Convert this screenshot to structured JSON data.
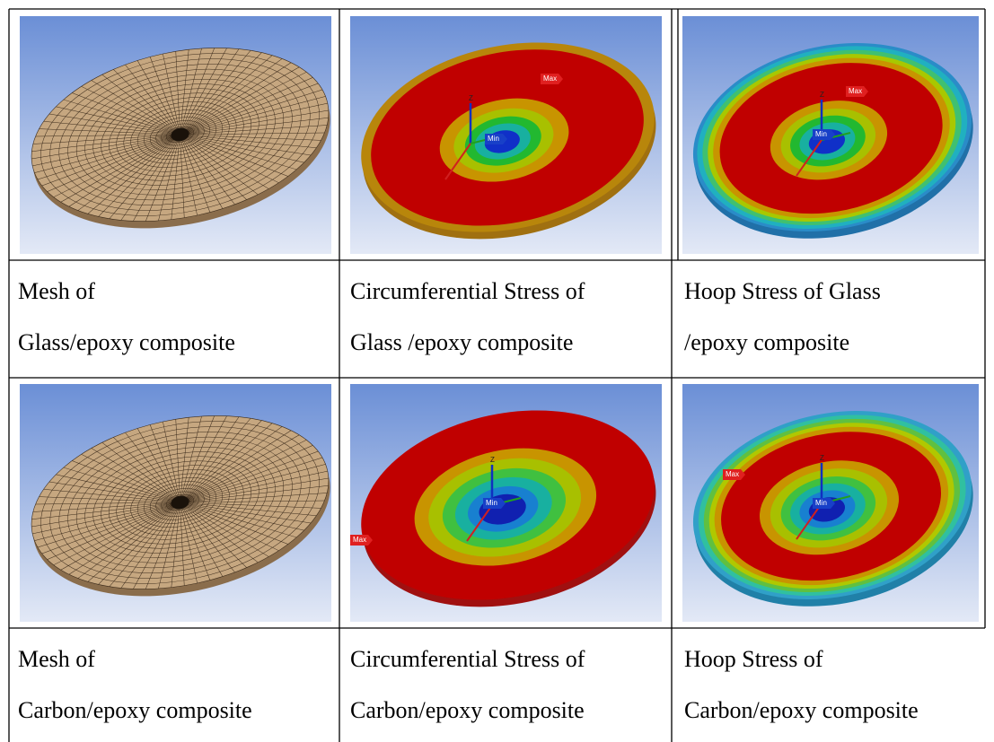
{
  "table": {
    "text_rows": [
      [
        [
          "Mesh of",
          "Glass/epoxy composite"
        ],
        [
          "Circumferential Stress of",
          "Glass /epoxy composite"
        ],
        [
          "Hoop Stress of Glass",
          "/epoxy composite"
        ]
      ],
      [
        [
          "Mesh of",
          "Carbon/epoxy composite"
        ],
        [
          "Circumferential Stress of",
          "Carbon/epoxy composite"
        ],
        [
          "Hoop Stress of",
          "Carbon/epoxy composite"
        ]
      ]
    ],
    "figure_tags": [
      [
        {
          "max": "Max",
          "min": "Min",
          "axis": "Z"
        },
        {
          "max": "Max",
          "min": "Min",
          "axis": "Z"
        }
      ],
      [
        {
          "max": "Max",
          "min": "Min",
          "axis": "Z"
        },
        {
          "max": "Max",
          "min": "Min",
          "axis": "Z"
        }
      ]
    ]
  }
}
